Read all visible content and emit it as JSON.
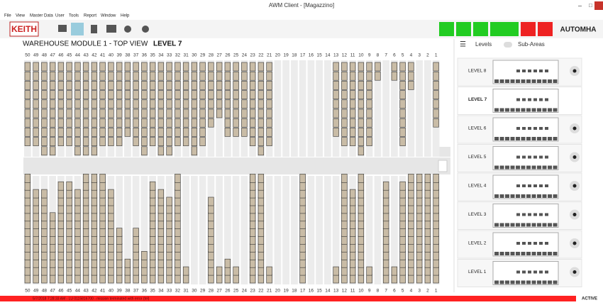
{
  "window_title": "AWM Client - [Magazzino]",
  "menu": [
    "File",
    "View",
    "Master Data",
    "User",
    "Tools",
    "Report",
    "Window",
    "Help"
  ],
  "logo": "KEITH",
  "brand": "AUTOMHA",
  "module": {
    "title": "WAREHOUSE MODULE 1 - TOP VIEW",
    "level": "LEVEL 7",
    "columns": [
      50,
      49,
      48,
      47,
      46,
      45,
      44,
      43,
      42,
      41,
      40,
      39,
      38,
      37,
      36,
      35,
      34,
      33,
      32,
      31,
      30,
      29,
      28,
      27,
      26,
      25,
      24,
      23,
      22,
      21,
      20,
      19,
      18,
      17,
      16,
      15,
      14,
      13,
      12,
      11,
      10,
      9,
      8,
      7,
      6,
      5,
      4,
      3,
      2,
      1
    ],
    "top_boxes": [
      9,
      9,
      10,
      10,
      9,
      9,
      10,
      10,
      10,
      9,
      9,
      9,
      8,
      9,
      10,
      9,
      10,
      10,
      9,
      9,
      10,
      9,
      7,
      6,
      8,
      8,
      8,
      9,
      10,
      9,
      0,
      0,
      0,
      0,
      0,
      0,
      0,
      8,
      9,
      9,
      10,
      9,
      2,
      0,
      2,
      9,
      3,
      0,
      0,
      7
    ],
    "bottom_boxes": [
      14,
      12,
      12,
      9,
      13,
      13,
      12,
      14,
      14,
      14,
      12,
      7,
      3,
      7,
      4,
      13,
      12,
      11,
      14,
      2,
      0,
      0,
      11,
      2,
      3,
      2,
      0,
      14,
      14,
      2,
      0,
      0,
      0,
      14,
      0,
      0,
      0,
      2,
      14,
      12,
      14,
      2,
      0,
      13,
      2,
      13,
      14,
      14,
      14,
      14
    ]
  },
  "panel": {
    "tabs": [
      "Levels",
      "Sub-Areas"
    ],
    "levels": [
      "LEVEL 8",
      "LEVEL 7",
      "LEVEL 6",
      "LEVEL 5",
      "LEVEL 4",
      "LEVEL 3",
      "LEVEL 2",
      "LEVEL 1"
    ]
  },
  "status": {
    "message": "5/7/2018 7:28:33 AM - LU 0115816700 - mission terminated with error (tel)",
    "state": "ACTIVE"
  }
}
